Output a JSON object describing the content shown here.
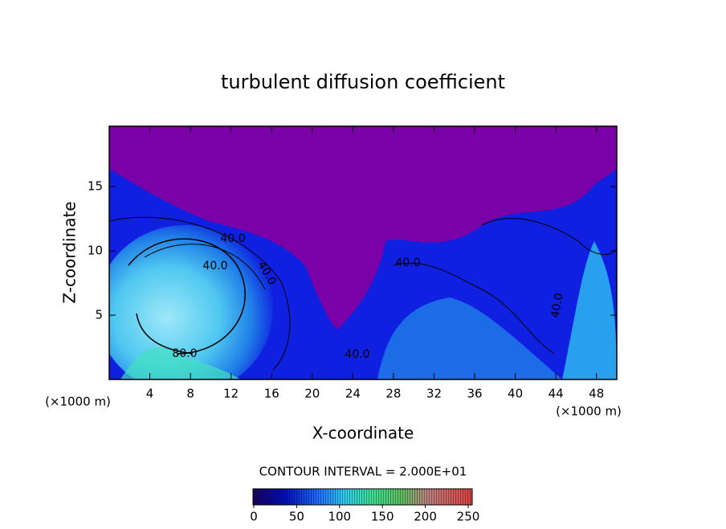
{
  "chart_data": {
    "type": "contour",
    "title": "turbulent diffusion coefficient",
    "x_label": "X-coordinate",
    "y_label": "Z-coordinate",
    "x_unit": "(×1000 m)",
    "xlim": [
      0,
      50
    ],
    "xticks": [
      4,
      8,
      12,
      16,
      20,
      24,
      28,
      32,
      36,
      40,
      44,
      48
    ],
    "ylim": [
      0,
      19.7
    ],
    "yticks": [
      5,
      10,
      15
    ],
    "contour_labels": [
      {
        "value": 40,
        "label": "40.0"
      },
      {
        "value": 40,
        "label": "40.0"
      },
      {
        "value": 40,
        "label": "40.0"
      },
      {
        "value": 40,
        "label": "40.0"
      },
      {
        "value": 40,
        "label": "40.0"
      },
      {
        "value": 40,
        "label": "40.0"
      },
      {
        "value": 80,
        "label": "80.0"
      }
    ],
    "colorbar": {
      "label": "CONTOUR INTERVAL = 2.000E+01",
      "lim": [
        0,
        250
      ],
      "ticks": [
        0,
        50,
        100,
        150,
        200,
        250
      ]
    }
  }
}
